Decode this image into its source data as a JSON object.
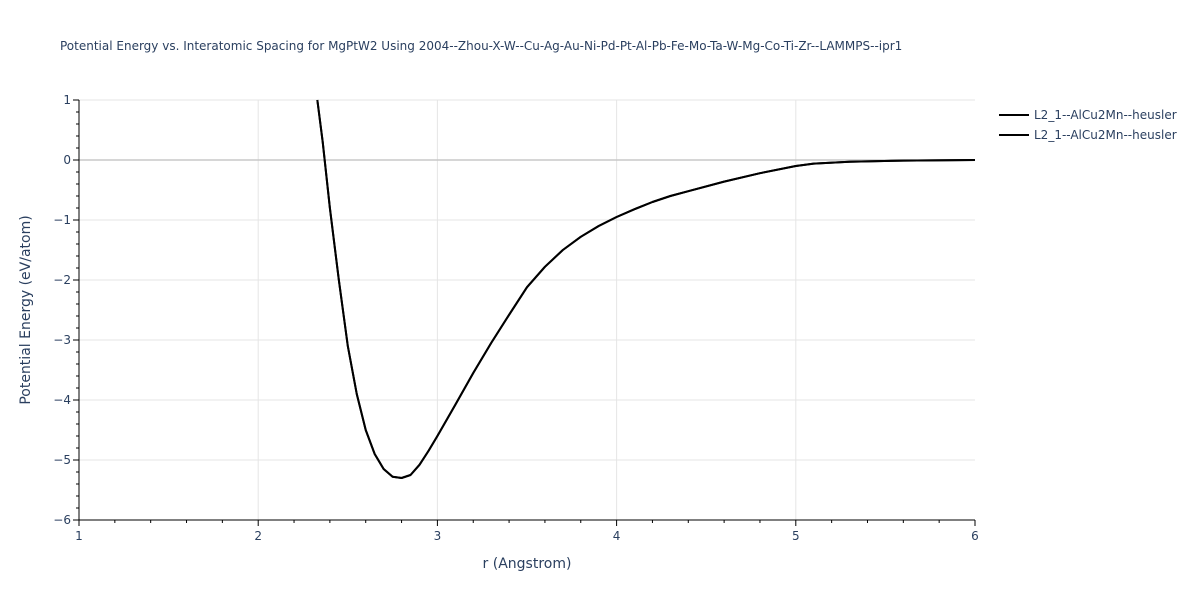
{
  "chart_data": {
    "type": "line",
    "title": "Potential Energy vs. Interatomic Spacing for MgPtW2 Using 2004--Zhou-X-W--Cu-Ag-Au-Ni-Pd-Pt-Al-Pb-Fe-Mo-Ta-W-Mg-Co-Ti-Zr--LAMMPS--ipr1",
    "xlabel": "r (Angstrom)",
    "ylabel": "Potential Energy (eV/atom)",
    "xlim": [
      1,
      6
    ],
    "ylim": [
      -6,
      1
    ],
    "x_ticks": [
      "1",
      "2",
      "3",
      "4",
      "5",
      "6"
    ],
    "y_ticks": [
      "1",
      "0",
      "−1",
      "−2",
      "−3",
      "−4",
      "−5",
      "−6"
    ],
    "grid": true,
    "legend_position": "top-right",
    "series_color": "#000000",
    "series": [
      {
        "name": "L2_1--AlCu2Mn--heusler",
        "x": [
          2.33,
          2.36,
          2.4,
          2.45,
          2.5,
          2.55,
          2.6,
          2.65,
          2.7,
          2.75,
          2.8,
          2.85,
          2.9,
          2.95,
          3.0,
          3.1,
          3.2,
          3.3,
          3.4,
          3.5,
          3.6,
          3.7,
          3.8,
          3.9,
          4.0,
          4.1,
          4.2,
          4.3,
          4.4,
          4.6,
          4.8,
          5.0,
          5.1,
          5.3,
          5.6,
          6.0
        ],
        "y": [
          1.0,
          0.3,
          -0.8,
          -2.0,
          -3.1,
          -3.9,
          -4.5,
          -4.9,
          -5.15,
          -5.28,
          -5.3,
          -5.25,
          -5.08,
          -4.85,
          -4.6,
          -4.08,
          -3.55,
          -3.05,
          -2.58,
          -2.12,
          -1.78,
          -1.5,
          -1.28,
          -1.1,
          -0.95,
          -0.82,
          -0.7,
          -0.6,
          -0.52,
          -0.36,
          -0.22,
          -0.1,
          -0.06,
          -0.03,
          -0.01,
          0.0
        ]
      },
      {
        "name": "L2_1--AlCu2Mn--heusler",
        "x": [
          2.33,
          2.36,
          2.4,
          2.45,
          2.5,
          2.55,
          2.6,
          2.65,
          2.7,
          2.75,
          2.8,
          2.85,
          2.9,
          2.95,
          3.0,
          3.1,
          3.2,
          3.3,
          3.4,
          3.5,
          3.6,
          3.7,
          3.8,
          3.9,
          4.0,
          4.1,
          4.2,
          4.3,
          4.4,
          4.6,
          4.8,
          5.0,
          5.1,
          5.3,
          5.6,
          6.0
        ],
        "y": [
          1.0,
          0.3,
          -0.8,
          -2.0,
          -3.1,
          -3.9,
          -4.5,
          -4.9,
          -5.15,
          -5.28,
          -5.3,
          -5.25,
          -5.08,
          -4.85,
          -4.6,
          -4.08,
          -3.55,
          -3.05,
          -2.58,
          -2.12,
          -1.78,
          -1.5,
          -1.28,
          -1.1,
          -0.95,
          -0.82,
          -0.7,
          -0.6,
          -0.52,
          -0.36,
          -0.22,
          -0.1,
          -0.06,
          -0.03,
          -0.01,
          0.0
        ]
      }
    ]
  }
}
